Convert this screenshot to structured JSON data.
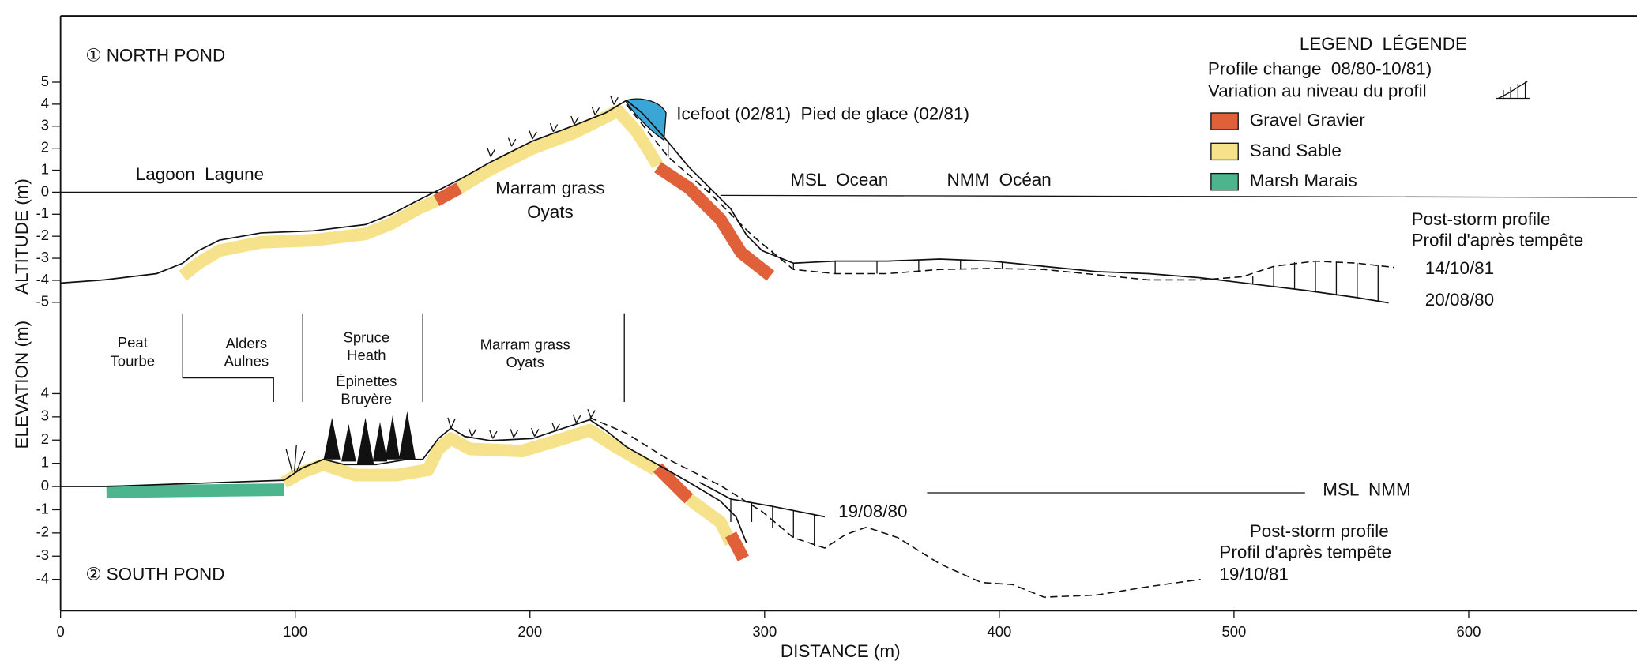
{
  "axes": {
    "x_label": "DISTANCE (m)",
    "x_ticks": [
      0,
      100,
      200,
      300,
      400,
      500,
      600
    ],
    "y_label_lower": "ELEVATION (m)",
    "y_label_upper": "ALTITUDE (m)"
  },
  "north_pond": {
    "title": "① NORTH POND",
    "y_ticks": [
      5,
      4,
      3,
      2,
      1,
      0,
      -1,
      -2,
      -3,
      -4,
      -5
    ],
    "labels": {
      "lagoon": "Lagoon  Lagune",
      "marram": "Marram grass",
      "oyats": "Oyats",
      "icefoot": "Icefoot (02/81)  Pied de glace (02/81)",
      "msl": "MSL  Ocean",
      "nmm": "NMM  Océan",
      "post_storm_en": "Post-storm profile",
      "post_storm_fr": "Profil d'après tempête",
      "date_post": "14/10/81",
      "date_pre": "20/08/80"
    }
  },
  "legend": {
    "title": "LEGEND  LÉGENDE",
    "profile_change": "Profile change  08/80-10/81)",
    "variation": "Variation au niveau du profil",
    "items": [
      {
        "label": "Gravel Gravier",
        "color": "#e0603a"
      },
      {
        "label": "Sand Sable",
        "color": "#f5e28a"
      },
      {
        "label": "Marsh Marais",
        "color": "#4cb58e"
      }
    ]
  },
  "south_pond": {
    "title": "② SOUTH POND",
    "y_ticks": [
      4,
      3,
      2,
      1,
      0,
      -1,
      -2,
      -3,
      -4
    ],
    "zones": {
      "peat": "Peat",
      "tourbe": "Tourbe",
      "alders": "Alders",
      "aulnes": "Aulnes",
      "spruce": "Spruce",
      "heath": "Heath",
      "epinettes": "Épinettes",
      "bruyere": "Bruyère",
      "marram": "Marram grass",
      "oyats": "Oyats"
    },
    "labels": {
      "date_pre": "19/08/80",
      "msl": "MSL  NMM",
      "post_storm_en": "Post-storm profile",
      "post_storm_fr": "Profil d'après tempête",
      "date_post": "19/10/81"
    }
  }
}
